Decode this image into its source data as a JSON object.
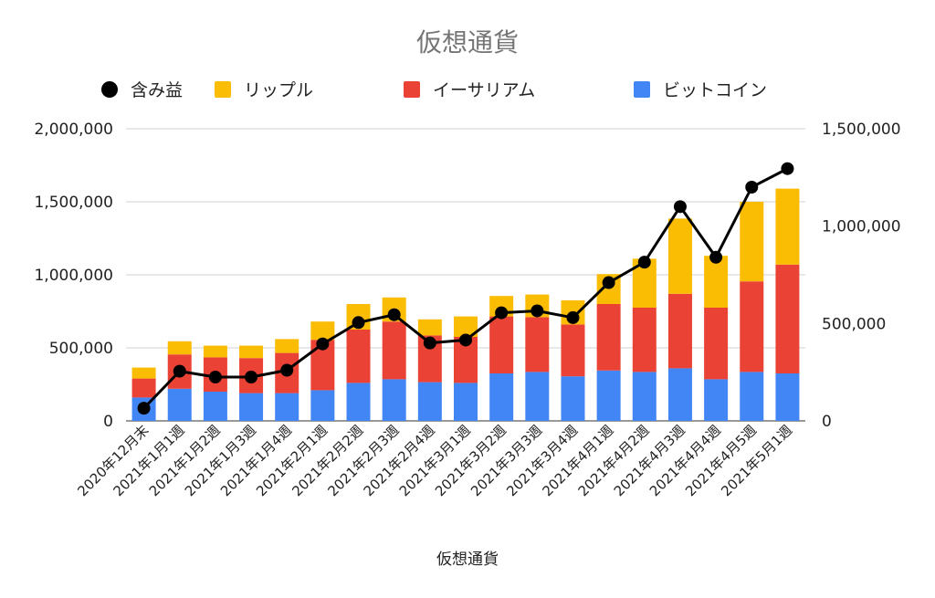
{
  "chart_data": {
    "type": "bar",
    "title": "仮想通貨",
    "xlabel": "仮想通貨",
    "stacked": true,
    "legend_position": "top",
    "categories": [
      "2020年12月末",
      "2021年1月1週",
      "2021年1月2週",
      "2021年1月3週",
      "2021年1月4週",
      "2021年2月1週",
      "2021年2月2週",
      "2021年2月3週",
      "2021年2月4週",
      "2021年3月1週",
      "2021年3月2週",
      "2021年3月3週",
      "2021年3月4週",
      "2021年4月1週",
      "2021年4月2週",
      "2021年4月3週",
      "2021年4月4週",
      "2021年4月5週",
      "2021年5月1週"
    ],
    "left_axis": {
      "min": 0,
      "max": 2000000,
      "ticks": [
        0,
        500000,
        1000000,
        1500000,
        2000000
      ],
      "tick_labels": [
        "0",
        "500,000",
        "1,000,000",
        "1,500,000",
        "2,000,000"
      ]
    },
    "right_axis": {
      "min": 0,
      "max": 1500000,
      "ticks": [
        0,
        500000,
        1000000,
        1500000
      ],
      "tick_labels": [
        "0",
        "500,000",
        "1,000,000",
        "1,500,000"
      ]
    },
    "grid": true,
    "series": [
      {
        "name": "ビットコイン",
        "type": "bar",
        "axis": "left",
        "color": "#4285f4",
        "values": [
          160000,
          220000,
          200000,
          190000,
          190000,
          210000,
          260000,
          285000,
          265000,
          260000,
          325000,
          335000,
          305000,
          345000,
          335000,
          360000,
          285000,
          335000,
          325000
        ]
      },
      {
        "name": "イーサリアム",
        "type": "bar",
        "axis": "left",
        "color": "#ea4335",
        "values": [
          130000,
          235000,
          235000,
          240000,
          275000,
          345000,
          365000,
          395000,
          320000,
          315000,
          390000,
          375000,
          355000,
          455000,
          440000,
          510000,
          490000,
          620000,
          745000
        ]
      },
      {
        "name": "リップル",
        "type": "bar",
        "axis": "left",
        "color": "#fbbc04",
        "values": [
          75000,
          90000,
          80000,
          85000,
          95000,
          125000,
          175000,
          165000,
          110000,
          140000,
          140000,
          155000,
          165000,
          205000,
          335000,
          515000,
          355000,
          545000,
          520000
        ]
      },
      {
        "name": "含み益",
        "type": "line",
        "axis": "right",
        "color": "#000000",
        "values": [
          65000,
          255000,
          225000,
          225000,
          260000,
          395000,
          505000,
          545000,
          400000,
          415000,
          555000,
          565000,
          530000,
          710000,
          815000,
          1100000,
          840000,
          1200000,
          1295000
        ]
      }
    ]
  }
}
